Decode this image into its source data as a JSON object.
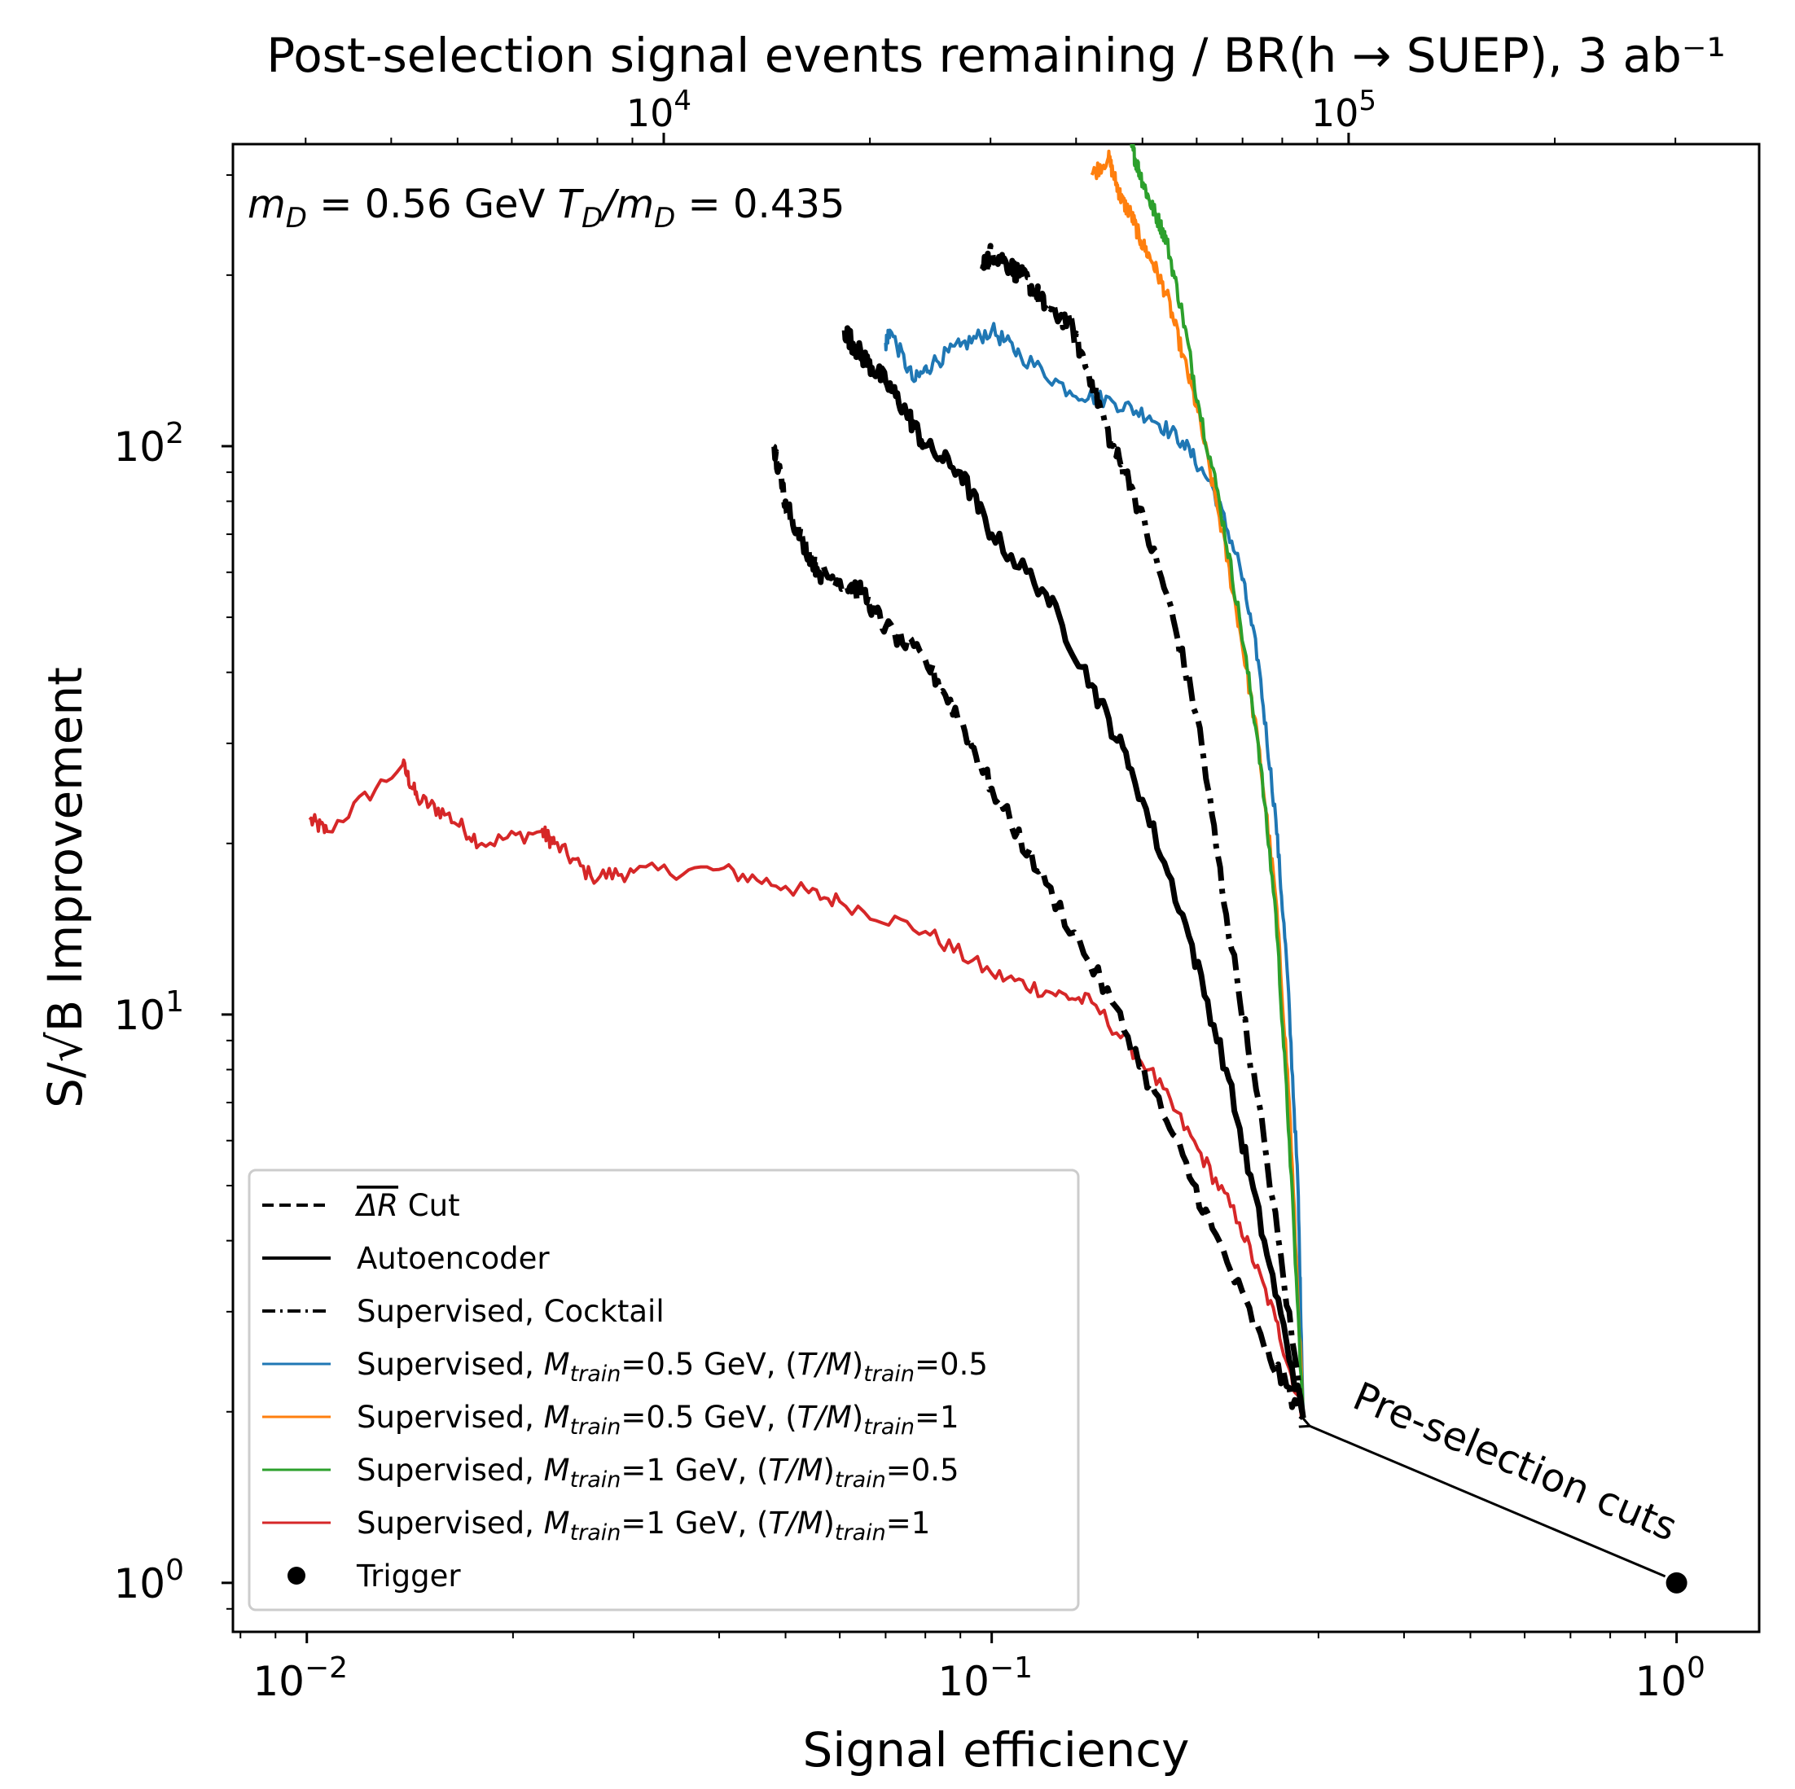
{
  "chart_data": {
    "type": "line",
    "title": "",
    "xlabel": "Signal efficiency",
    "ylabel": "S/√B Improvement",
    "top_axis_label": "Post-selection signal events remaining / BR(h → SUEP), 3 ab⁻¹",
    "xscale": "log",
    "yscale": "log",
    "xlim": [
      0.0078,
      1.32
    ],
    "ylim": [
      0.82,
      340
    ],
    "x_ticks": [
      {
        "value": 0.01,
        "base": "10",
        "exp": "−2"
      },
      {
        "value": 0.1,
        "base": "10",
        "exp": "−1"
      },
      {
        "value": 1,
        "base": "10",
        "exp": "0"
      }
    ],
    "y_ticks": [
      {
        "value": 1,
        "base": "10",
        "exp": "0"
      },
      {
        "value": 10,
        "base": "10",
        "exp": "1"
      },
      {
        "value": 100,
        "base": "10",
        "exp": "2"
      }
    ],
    "top_ticks": [
      {
        "x_value": 0.0332,
        "base": "10",
        "exp": "4"
      },
      {
        "x_value": 0.332,
        "base": "10",
        "exp": "5"
      }
    ],
    "annotation": {
      "text": "m_D = 0.56 GeV  T_D/m_D = 0.435",
      "parts": {
        "m": "m",
        "D": "D",
        "eq1": " = 0.56 GeV ",
        "T": "T",
        "slash": "/",
        "eq2": " = 0.435"
      }
    },
    "arrow_annotation": {
      "text": "Pre-selection cuts",
      "from": [
        1.0,
        1.0
      ],
      "to": [
        0.285,
        1.9
      ]
    },
    "series": [
      {
        "name": "Supervised, M_train=1 GeV, (T/M)_train=1",
        "legend": {
          "prefix": "Supervised, ",
          "m": "M",
          "train": "train",
          "mid": "=1 GeV, (",
          "t": "T",
          "s": "/",
          "mm": "M",
          "close": ")",
          "tail": "=1"
        },
        "style": "solid",
        "color": "#d62728",
        "width": 4,
        "jitter": 0.03,
        "x": [
          0.0101,
          0.0107,
          0.0138,
          0.0145,
          0.016,
          0.018,
          0.022,
          0.023,
          0.026,
          0.03,
          0.04,
          0.05,
          0.06,
          0.08,
          0.1,
          0.12,
          0.14,
          0.17,
          0.2,
          0.23,
          0.26,
          0.285
        ],
        "y": [
          22,
          21,
          27.5,
          24,
          22.5,
          20,
          21,
          20,
          17.5,
          17.8,
          18,
          16.8,
          15.8,
          14,
          11.8,
          11,
          10.5,
          8,
          5.8,
          4.3,
          2.9,
          1.95
        ]
      },
      {
        "name": "Supervised, M_train=0.5 GeV, (T/M)_train=0.5",
        "legend": {
          "prefix": "Supervised, ",
          "m": "M",
          "train": "train",
          "mid": "=0.5 GeV, (",
          "t": "T",
          "s": "/",
          "mm": "M",
          "close": ")",
          "tail": "=0.5"
        },
        "style": "solid",
        "color": "#1f77b4",
        "width": 4,
        "jitter": 0.03,
        "x": [
          0.07,
          0.071,
          0.077,
          0.082,
          0.09,
          0.1,
          0.11,
          0.13,
          0.15,
          0.17,
          0.19,
          0.21,
          0.23,
          0.245,
          0.26,
          0.27,
          0.28,
          0.285
        ],
        "y": [
          152,
          160,
          130,
          140,
          150,
          160,
          145,
          125,
          120,
          113,
          102,
          85,
          62,
          42,
          22,
          12,
          5,
          1.95
        ]
      },
      {
        "name": "Supervised, M_train=0.5 GeV, (T/M)_train=1",
        "legend": {
          "prefix": "Supervised, ",
          "m": "M",
          "train": "train",
          "mid": "=0.5 GeV, (",
          "t": "T",
          "s": "/",
          "mm": "M",
          "close": ")",
          "tail": "=1"
        },
        "style": "solid",
        "color": "#ff7f0e",
        "width": 4,
        "jitter": 0.03,
        "x": [
          0.14,
          0.148,
          0.152,
          0.155,
          0.16,
          0.165,
          0.172,
          0.18,
          0.19,
          0.2,
          0.215,
          0.23,
          0.245,
          0.26,
          0.272,
          0.285
        ],
        "y": [
          300,
          322,
          290,
          270,
          255,
          230,
          210,
          185,
          145,
          115,
          75,
          48,
          30,
          16,
          7,
          1.95
        ]
      },
      {
        "name": "Supervised, M_train=1 GeV, (T/M)_train=0.5",
        "legend": {
          "prefix": "Supervised, ",
          "m": "M",
          "train": "train",
          "mid": "=1 GeV, (",
          "t": "T",
          "s": "/",
          "mm": "M",
          "close": ")",
          "tail": "=0.5"
        },
        "style": "solid",
        "color": "#2ca02c",
        "width": 4,
        "jitter": 0.03,
        "x": [
          0.16,
          0.162,
          0.165,
          0.17,
          0.175,
          0.18,
          0.19,
          0.2,
          0.215,
          0.23,
          0.245,
          0.26,
          0.272,
          0.285
        ],
        "y": [
          340,
          320,
          300,
          270,
          250,
          230,
          170,
          120,
          80,
          50,
          30,
          15,
          6,
          1.95
        ]
      },
      {
        "name": "Supervised, Cocktail",
        "legend": {
          "prefix": "Supervised, Cocktail"
        },
        "style": "dashdot",
        "color": "#000000",
        "width": 7,
        "jitter": 0.035,
        "x": [
          0.097,
          0.1,
          0.105,
          0.11,
          0.115,
          0.12,
          0.13,
          0.14,
          0.15,
          0.16,
          0.18,
          0.2,
          0.22,
          0.25,
          0.285
        ],
        "y": [
          205,
          220,
          210,
          200,
          190,
          175,
          165,
          130,
          100,
          85,
          55,
          33,
          15,
          6,
          1.95
        ]
      },
      {
        "name": "Autoencoder",
        "legend": {
          "prefix": "Autoencoder"
        },
        "style": "solid",
        "color": "#000000",
        "width": 7,
        "jitter": 0.035,
        "x": [
          0.061,
          0.063,
          0.066,
          0.07,
          0.075,
          0.08,
          0.09,
          0.1,
          0.12,
          0.14,
          0.16,
          0.19,
          0.22,
          0.25,
          0.285
        ],
        "y": [
          160,
          150,
          140,
          130,
          115,
          100,
          90,
          70,
          55,
          38,
          27,
          15,
          8,
          4,
          1.95
        ]
      },
      {
        "name": "ΔR Cut",
        "legend": {
          "prefix": "ΔR",
          "suffix": " Cut"
        },
        "style": "dashed",
        "color": "#000000",
        "width": 7,
        "jitter": 0.035,
        "x": [
          0.048,
          0.05,
          0.053,
          0.056,
          0.06,
          0.065,
          0.07,
          0.08,
          0.09,
          0.1,
          0.12,
          0.15,
          0.18,
          0.21,
          0.25,
          0.285
        ],
        "y": [
          100,
          80,
          68,
          60,
          58,
          55,
          48,
          42,
          33,
          25,
          17,
          10.5,
          6.5,
          4.2,
          2.6,
          1.95
        ]
      }
    ],
    "legend_order": [
      6,
      5,
      4,
      1,
      2,
      3,
      0
    ],
    "trigger": {
      "label": "Trigger",
      "x": 1.0,
      "y": 1.0,
      "color": "#000000"
    },
    "legend_position": "lower-left"
  }
}
